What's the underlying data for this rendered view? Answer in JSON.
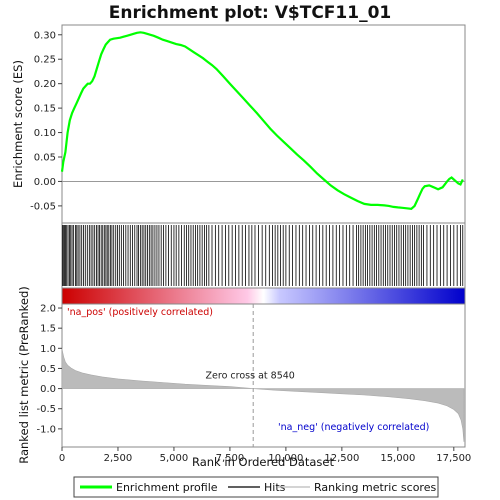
{
  "chart_data": [
    {
      "type": "line",
      "title": "Enrichment plot: V$TCF11_01",
      "ylabel": "Enrichment score (ES)",
      "ylim": [
        -0.085,
        0.32
      ],
      "yticks": [
        -0.05,
        0.0,
        0.05,
        0.1,
        0.15,
        0.2,
        0.25,
        0.3
      ],
      "ytick_labels": [
        "-0.05",
        "0.00",
        "0.05",
        "0.10",
        "0.15",
        "0.20",
        "0.25",
        "0.30"
      ],
      "xlim": [
        0,
        18000
      ],
      "series": [
        {
          "name": "Enrichment profile",
          "color": "#00ff00",
          "x": [
            0,
            60,
            150,
            250,
            350,
            450,
            550,
            650,
            750,
            850,
            950,
            1050,
            1150,
            1250,
            1350,
            1450,
            1550,
            1650,
            1750,
            1850,
            1950,
            2050,
            2150,
            2300,
            2450,
            2600,
            2750,
            2900,
            3050,
            3200,
            3350,
            3500,
            3650,
            3800,
            3950,
            4100,
            4300,
            4500,
            4700,
            4900,
            5100,
            5300,
            5500,
            5700,
            5900,
            6100,
            6300,
            6500,
            6700,
            6900,
            7200,
            7500,
            7800,
            8100,
            8400,
            8700,
            9000,
            9300,
            9600,
            9900,
            10200,
            10500,
            10800,
            11100,
            11400,
            11700,
            12000,
            12300,
            12600,
            12900,
            13200,
            13500,
            13800,
            14100,
            14400,
            14600,
            14800,
            15000,
            15200,
            15400,
            15600,
            15750,
            15900,
            16000,
            16100,
            16200,
            16400,
            16600,
            16800,
            17000,
            17100,
            17200,
            17300,
            17400,
            17500,
            17600,
            17700,
            17800,
            17900
          ],
          "y": [
            0.02,
            0.04,
            0.06,
            0.1,
            0.125,
            0.14,
            0.15,
            0.16,
            0.17,
            0.18,
            0.19,
            0.195,
            0.2,
            0.2,
            0.205,
            0.215,
            0.23,
            0.245,
            0.26,
            0.27,
            0.28,
            0.285,
            0.29,
            0.292,
            0.293,
            0.294,
            0.296,
            0.298,
            0.3,
            0.302,
            0.304,
            0.305,
            0.304,
            0.302,
            0.3,
            0.298,
            0.294,
            0.29,
            0.287,
            0.284,
            0.281,
            0.279,
            0.276,
            0.27,
            0.264,
            0.258,
            0.252,
            0.245,
            0.238,
            0.23,
            0.215,
            0.2,
            0.185,
            0.17,
            0.155,
            0.14,
            0.124,
            0.108,
            0.094,
            0.081,
            0.068,
            0.055,
            0.043,
            0.03,
            0.016,
            0.004,
            -0.008,
            -0.018,
            -0.026,
            -0.033,
            -0.04,
            -0.046,
            -0.048,
            -0.048,
            -0.049,
            -0.05,
            -0.052,
            -0.053,
            -0.054,
            -0.055,
            -0.056,
            -0.05,
            -0.035,
            -0.025,
            -0.015,
            -0.01,
            -0.008,
            -0.012,
            -0.016,
            -0.012,
            -0.006,
            0.0,
            0.005,
            0.008,
            0.004,
            0.0,
            -0.004,
            -0.006,
            0.004
          ]
        }
      ]
    },
    {
      "type": "line",
      "xlabel": "Rank in Ordered Dataset",
      "ylabel": "Ranked list metric (PreRanked)",
      "xlim": [
        0,
        18000
      ],
      "ylim": [
        -1.45,
        2.1
      ],
      "xticks": [
        0,
        2500,
        5000,
        7500,
        10000,
        12500,
        15000,
        17500
      ],
      "xtick_labels": [
        "0",
        "2,500",
        "5,000",
        "7,500",
        "10,000",
        "12,500",
        "15,000",
        "17,500"
      ],
      "yticks": [
        -1.0,
        -0.5,
        0.0,
        0.5,
        1.0,
        1.5,
        2.0
      ],
      "ytick_labels": [
        "-1.0",
        "-0.5",
        "0.0",
        "0.5",
        "1.0",
        "1.5",
        "2.0"
      ],
      "series": [
        {
          "name": "Ranking metric scores",
          "color": "#bbbbbb",
          "x": [
            0,
            30,
            80,
            150,
            250,
            400,
            600,
            900,
            1300,
            1800,
            2500,
            3500,
            4500,
            5500,
            6500,
            7500,
            8540,
            9500,
            10500,
            11500,
            12500,
            13500,
            14500,
            15500,
            16200,
            16800,
            17200,
            17500,
            17700,
            17820,
            17900,
            17950
          ],
          "y": [
            1.0,
            0.9,
            0.78,
            0.66,
            0.58,
            0.51,
            0.45,
            0.39,
            0.34,
            0.29,
            0.24,
            0.19,
            0.15,
            0.11,
            0.08,
            0.05,
            0.0,
            -0.04,
            -0.07,
            -0.1,
            -0.13,
            -0.16,
            -0.2,
            -0.25,
            -0.3,
            -0.36,
            -0.43,
            -0.52,
            -0.62,
            -0.78,
            -1.0,
            -1.32
          ]
        }
      ],
      "annotations": {
        "zero_cross_label": "Zero cross at 8540",
        "zero_cross_x": 8540,
        "pos_label": "'na_pos' (positively correlated)",
        "neg_label": "'na_neg' (negatively correlated)"
      }
    }
  ],
  "hits": {
    "name": "Hits",
    "color": "#000000",
    "positions": [
      20,
      60,
      110,
      160,
      210,
      270,
      330,
      390,
      450,
      520,
      600,
      660,
      720,
      800,
      880,
      960,
      1040,
      1130,
      1220,
      1300,
      1380,
      1460,
      1540,
      1610,
      1680,
      1750,
      1820,
      1890,
      1960,
      2020,
      2090,
      2160,
      2230,
      2310,
      2400,
      2480,
      2560,
      2650,
      2750,
      2850,
      2950,
      3050,
      3150,
      3250,
      3350,
      3420,
      3500,
      3580,
      3660,
      3740,
      3820,
      3900,
      3980,
      4060,
      4150,
      4240,
      4330,
      4430,
      4530,
      4640,
      4760,
      4880,
      5000,
      5100,
      5220,
      5340,
      5460,
      5560,
      5660,
      5760,
      5860,
      5960,
      6060,
      6160,
      6260,
      6360,
      6460,
      6560,
      6700,
      6850,
      7000,
      7150,
      7300,
      7450,
      7600,
      7750,
      7900,
      8050,
      8200,
      8350,
      8480,
      8620,
      8780,
      8940,
      9100,
      9260,
      9400,
      9520,
      9640,
      9760,
      9880,
      10000,
      10150,
      10300,
      10450,
      10600,
      10750,
      10900,
      11050,
      11200,
      11350,
      11500,
      11650,
      11800,
      11950,
      12100,
      12250,
      12400,
      12550,
      12700,
      12850,
      13000,
      13150,
      13250,
      13350,
      13450,
      13550,
      13650,
      13750,
      13850,
      13950,
      14050,
      14150,
      14250,
      14350,
      14450,
      14550,
      14650,
      14750,
      14850,
      14950,
      15050,
      15150,
      15250,
      15350,
      15450,
      15550,
      15650,
      15750,
      15850,
      15950,
      16050,
      16150,
      16300,
      16450,
      16600,
      16750,
      16900,
      17050,
      17200,
      17350,
      17500,
      17650,
      17800,
      17900
    ]
  },
  "heat_bar": {
    "start_color": "#cc0000",
    "mid_color": "#ffffff",
    "end_color": "#0000cc"
  },
  "legend": [
    {
      "label": "Enrichment profile",
      "color": "#00ff00",
      "style": "thick-line"
    },
    {
      "label": "Hits",
      "color": "#000000",
      "style": "line"
    },
    {
      "label": "Ranking metric scores",
      "color": "#bbbbbb",
      "style": "line"
    }
  ]
}
